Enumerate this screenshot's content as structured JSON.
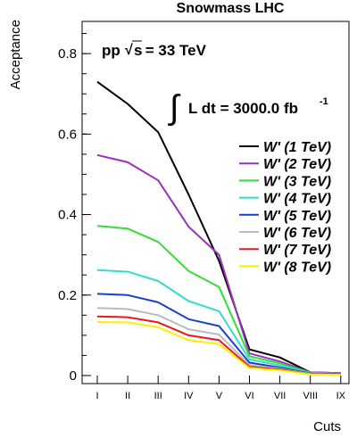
{
  "chart_data": {
    "type": "line",
    "title": "Snowmass LHC",
    "xlabel": "Cuts",
    "ylabel": "Acceptance",
    "categories": [
      "I",
      "II",
      "III",
      "IV",
      "V",
      "VI",
      "VII",
      "VIII",
      "IX"
    ],
    "ylim": [
      -0.02,
      0.88
    ],
    "yticks": [
      {
        "value": 0,
        "label": "0"
      },
      {
        "value": 0.2,
        "label": "0.2"
      },
      {
        "value": 0.4,
        "label": "0.4"
      },
      {
        "value": 0.6,
        "label": "0.6"
      },
      {
        "value": 0.8,
        "label": "0.8"
      }
    ],
    "annotations": {
      "energy_prefix": "pp",
      "energy_sqrt": "√",
      "energy_s": "s",
      "energy_suffix": " = 33 TeV",
      "lumi_integral": "∫",
      "lumi_text": "L dt = 3000.0 fb",
      "lumi_sup": "-1"
    },
    "legend_position": "right",
    "series": [
      {
        "name": "W' (1 TeV)",
        "color": "#000000",
        "values": [
          0.73,
          0.675,
          0.605,
          0.45,
          0.285,
          0.065,
          0.045,
          0.008,
          0.006
        ]
      },
      {
        "name": "W' (2 TeV)",
        "color": "#9b30c0",
        "values": [
          0.548,
          0.53,
          0.485,
          0.37,
          0.3,
          0.055,
          0.035,
          0.008,
          0.006
        ]
      },
      {
        "name": "W' (3 TeV)",
        "color": "#33dd33",
        "values": [
          0.372,
          0.365,
          0.332,
          0.26,
          0.22,
          0.048,
          0.03,
          0.007,
          0.005
        ]
      },
      {
        "name": "W' (4 TeV)",
        "color": "#33ddcc",
        "values": [
          0.262,
          0.258,
          0.235,
          0.185,
          0.16,
          0.04,
          0.025,
          0.006,
          0.005
        ]
      },
      {
        "name": "W' (5 TeV)",
        "color": "#1a3fd0",
        "values": [
          0.203,
          0.2,
          0.182,
          0.14,
          0.123,
          0.032,
          0.02,
          0.005,
          0.004
        ]
      },
      {
        "name": "W' (6 TeV)",
        "color": "#bbbbbb",
        "values": [
          0.168,
          0.165,
          0.15,
          0.115,
          0.102,
          0.026,
          0.017,
          0.004,
          0.003
        ]
      },
      {
        "name": "W' (7 TeV)",
        "color": "#e61a1a",
        "values": [
          0.147,
          0.145,
          0.132,
          0.1,
          0.088,
          0.022,
          0.015,
          0.003,
          0.003
        ]
      },
      {
        "name": "W' (8 TeV)",
        "color": "#ffee00",
        "values": [
          0.133,
          0.132,
          0.12,
          0.088,
          0.078,
          0.019,
          0.013,
          0.003,
          0.002
        ]
      }
    ]
  }
}
